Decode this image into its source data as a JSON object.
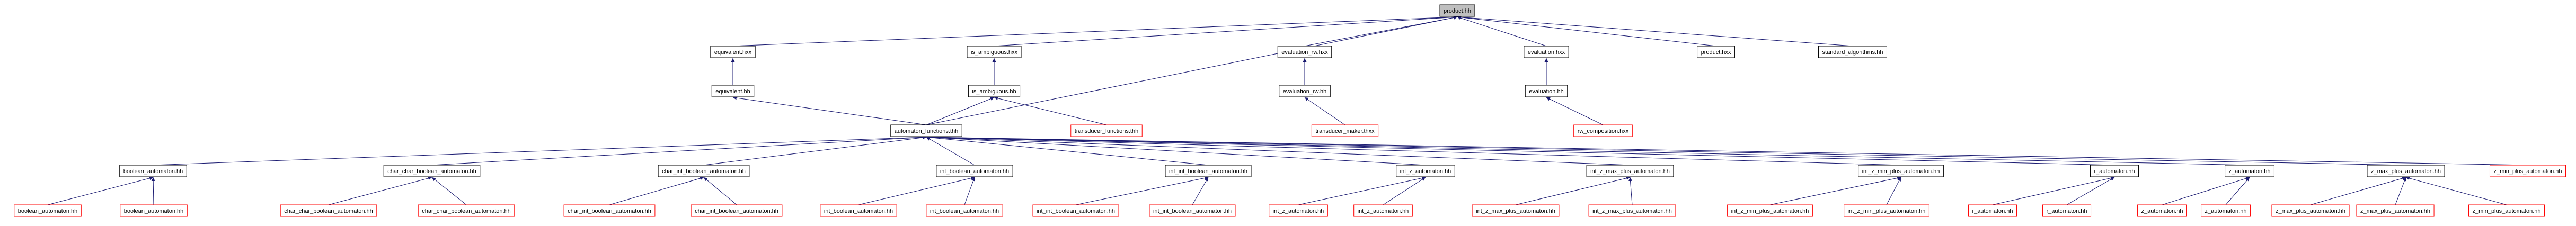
{
  "nodes": [
    {
      "label": "product.hh"
    },
    {
      "label": "equivalent.hxx"
    },
    {
      "label": "is_ambiguous.hxx"
    },
    {
      "label": "evaluation_rw.hxx"
    },
    {
      "label": "evaluation.hxx"
    },
    {
      "label": "product.hxx"
    },
    {
      "label": "standard_algorithms.hh"
    },
    {
      "label": "equivalent.hh"
    },
    {
      "label": "is_ambiguous.hh"
    },
    {
      "label": "evaluation_rw.hh"
    },
    {
      "label": "evaluation.hh"
    },
    {
      "label": "automaton_functions.thh"
    },
    {
      "label": "transducer_functions.thh"
    },
    {
      "label": "transducer_maker.thxx"
    },
    {
      "label": "rw_composition.hxx"
    },
    {
      "label": "boolean_automaton.hh"
    },
    {
      "label": "char_char_boolean_automaton.hh"
    },
    {
      "label": "char_int_boolean_automaton.hh"
    },
    {
      "label": "int_boolean_automaton.hh"
    },
    {
      "label": "int_int_boolean_automaton.hh"
    },
    {
      "label": "int_z_automaton.hh"
    },
    {
      "label": "int_z_max_plus_automaton.hh"
    },
    {
      "label": "int_z_min_plus_automaton.hh"
    },
    {
      "label": "r_automaton.hh"
    },
    {
      "label": "z_automaton.hh"
    },
    {
      "label": "z_max_plus_automaton.hh"
    },
    {
      "label": "z_min_plus_automaton.hh"
    },
    {
      "label": "boolean_automaton.hh"
    },
    {
      "label": "boolean_automaton.hh"
    },
    {
      "label": "char_char_boolean_automaton.hh"
    },
    {
      "label": "char_char_boolean_automaton.hh"
    },
    {
      "label": "char_int_boolean_automaton.hh"
    },
    {
      "label": "char_int_boolean_automaton.hh"
    },
    {
      "label": "int_boolean_automaton.hh"
    },
    {
      "label": "int_boolean_automaton.hh"
    },
    {
      "label": "int_int_boolean_automaton.hh"
    },
    {
      "label": "int_int_boolean_automaton.hh"
    },
    {
      "label": "int_z_automaton.hh"
    },
    {
      "label": "int_z_automaton.hh"
    },
    {
      "label": "int_z_max_plus_automaton.hh"
    },
    {
      "label": "int_z_max_plus_automaton.hh"
    },
    {
      "label": "int_z_min_plus_automaton.hh"
    },
    {
      "label": "int_z_min_plus_automaton.hh"
    },
    {
      "label": "r_automaton.hh"
    },
    {
      "label": "r_automaton.hh"
    },
    {
      "label": "z_automaton.hh"
    },
    {
      "label": "z_automaton.hh"
    },
    {
      "label": "z_max_plus_automaton.hh"
    },
    {
      "label": "z_max_plus_automaton.hh"
    },
    {
      "label": "z_min_plus_automaton.hh"
    }
  ]
}
